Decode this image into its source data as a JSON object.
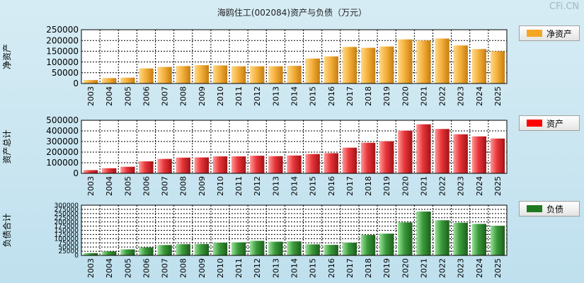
{
  "title": "海鸥住工(002084)资产与负债（万元）",
  "watermark": "CFi.CN",
  "chart_data": [
    {
      "type": "bar",
      "ylabel": "净资产",
      "legend": "净资产",
      "legend_position": "right",
      "color": "#f5a623",
      "ylim": [
        0,
        250000
      ],
      "yticks": [
        0,
        50000,
        100000,
        150000,
        200000,
        250000
      ],
      "categories": [
        "2003",
        "2004",
        "2005",
        "2006",
        "2007",
        "2008",
        "2009",
        "2010",
        "2011",
        "2012",
        "2013",
        "2014",
        "2015",
        "2016",
        "2017",
        "2018",
        "2019",
        "2020",
        "2021",
        "2022",
        "2023",
        "2024",
        "2025"
      ],
      "values": [
        16000,
        25000,
        27000,
        70000,
        77000,
        81000,
        85000,
        84000,
        80000,
        80000,
        80000,
        82000,
        116000,
        126000,
        170000,
        166000,
        172000,
        205000,
        200000,
        209000,
        177000,
        160000,
        150000
      ]
    },
    {
      "type": "bar",
      "ylabel": "资产总计",
      "legend": "资产",
      "legend_position": "right",
      "color": "#e8262a",
      "ylim": [
        0,
        500000
      ],
      "yticks": [
        0,
        100000,
        200000,
        300000,
        400000,
        500000
      ],
      "categories": [
        "2003",
        "2004",
        "2005",
        "2006",
        "2007",
        "2008",
        "2009",
        "2010",
        "2011",
        "2012",
        "2013",
        "2014",
        "2015",
        "2016",
        "2017",
        "2018",
        "2019",
        "2020",
        "2021",
        "2022",
        "2023",
        "2024",
        "2025"
      ],
      "values": [
        30000,
        48000,
        62000,
        113000,
        136000,
        148000,
        150000,
        160000,
        160000,
        166000,
        162000,
        168000,
        182000,
        190000,
        242000,
        288000,
        302000,
        402000,
        462000,
        418000,
        368000,
        348000,
        328000
      ]
    },
    {
      "type": "bar",
      "ylabel": "负债合计",
      "legend": "负债",
      "legend_position": "right",
      "color": "#2a8a2a",
      "ylim": [
        0,
        300000
      ],
      "yticks": [
        0,
        25000,
        50000,
        75000,
        100000,
        125000,
        150000,
        175000,
        200000,
        225000,
        250000,
        275000,
        300000
      ],
      "categories": [
        "2003",
        "2004",
        "2005",
        "2006",
        "2007",
        "2008",
        "2009",
        "2010",
        "2011",
        "2012",
        "2013",
        "2014",
        "2015",
        "2016",
        "2017",
        "2018",
        "2019",
        "2020",
        "2021",
        "2022",
        "2023",
        "2024",
        "2025"
      ],
      "values": [
        14000,
        24000,
        36000,
        48000,
        62000,
        67000,
        68000,
        76000,
        78000,
        87000,
        82000,
        84000,
        66000,
        63000,
        76000,
        122000,
        130000,
        197000,
        262000,
        210000,
        195000,
        188000,
        177000
      ]
    }
  ]
}
